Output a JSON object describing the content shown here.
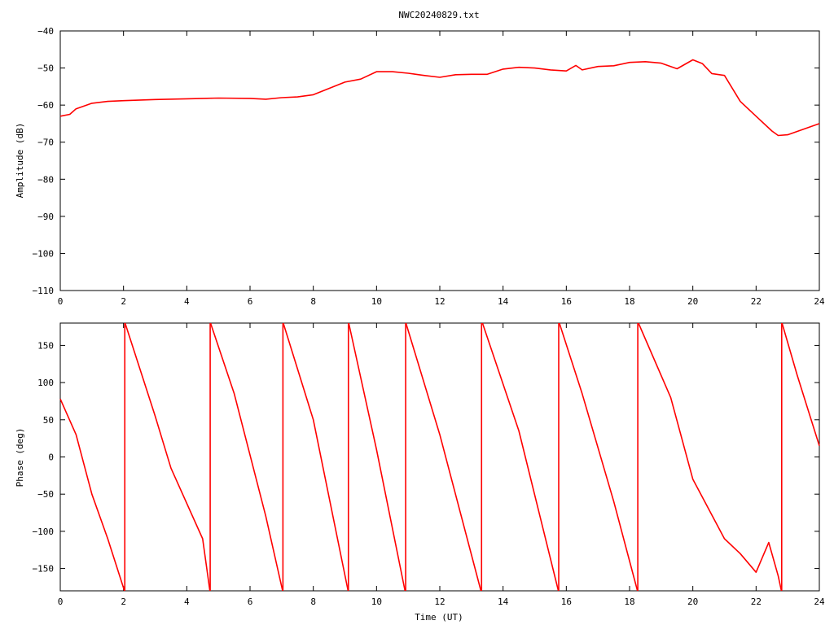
{
  "title": "NWC20240829.txt",
  "chart_data": [
    {
      "type": "line",
      "title": "NWC20240829.txt",
      "xlabel": "",
      "ylabel": "Amplitude (dB)",
      "xlim": [
        0,
        24
      ],
      "ylim": [
        -110,
        -40
      ],
      "xticks": [
        "0",
        "2",
        "4",
        "6",
        "8",
        "10",
        "12",
        "14",
        "16",
        "18",
        "20",
        "22",
        "24"
      ],
      "yticks": [
        "−40",
        "−50",
        "−60",
        "−70",
        "−80",
        "−90",
        "−100",
        "−110"
      ],
      "grid": false,
      "color": "#ff0000",
      "series": [
        {
          "x": [
            0,
            0.3,
            0.5,
            1,
            1.5,
            2,
            3,
            4,
            5,
            6,
            6.5,
            7,
            7.5,
            8,
            8.5,
            9,
            9.5,
            10,
            10.5,
            11,
            11.5,
            12,
            12.5,
            13,
            13.5,
            14,
            14.5,
            15,
            15.5,
            16,
            16.3,
            16.5,
            17,
            17.5,
            18,
            18.5,
            19,
            19.5,
            20,
            20.3,
            20.6,
            21,
            21.5,
            22,
            22.5,
            22.7,
            23,
            23.5,
            24
          ],
          "y": [
            -63,
            -62.5,
            -61,
            -59.5,
            -59,
            -58.8,
            -58.5,
            -58.3,
            -58.1,
            -58.2,
            -58.4,
            -58,
            -57.8,
            -57.2,
            -55.5,
            -53.8,
            -53,
            -51,
            -51,
            -51.4,
            -52,
            -52.5,
            -51.8,
            -51.7,
            -51.7,
            -50.3,
            -49.8,
            -50,
            -50.5,
            -50.8,
            -49.3,
            -50.5,
            -49.6,
            -49.4,
            -48.5,
            -48.3,
            -48.7,
            -50.2,
            -47.8,
            -48.8,
            -51.5,
            -52,
            -59,
            -63,
            -67,
            -68.2,
            -68,
            -66.5,
            -65
          ]
        }
      ]
    },
    {
      "type": "line",
      "title": "",
      "xlabel": "Time (UT)",
      "ylabel": "Phase (deg)",
      "xlim": [
        0,
        24
      ],
      "ylim": [
        -180,
        180
      ],
      "xticks": [
        "0",
        "2",
        "4",
        "6",
        "8",
        "10",
        "12",
        "14",
        "16",
        "18",
        "20",
        "22",
        "24"
      ],
      "yticks": [
        "150",
        "100",
        "50",
        "0",
        "−50",
        "−100",
        "−150"
      ],
      "grid": false,
      "color": "#ff0000",
      "series": [
        {
          "x": [
            0,
            0.5,
            1,
            1.5,
            2.03
          ],
          "y": [
            78,
            30,
            -50,
            -110,
            -180
          ]
        },
        {
          "x": [
            2.05,
            3,
            3.5,
            4.5,
            4.73
          ],
          "y": [
            180,
            55,
            -15,
            -110,
            -180
          ]
        },
        {
          "x": [
            4.75,
            5.5,
            6.5,
            7.03
          ],
          "y": [
            180,
            85,
            -80,
            -180
          ]
        },
        {
          "x": [
            7.05,
            8,
            9.1
          ],
          "y": [
            180,
            50,
            -180
          ]
        },
        {
          "x": [
            9.12,
            10,
            10.9
          ],
          "y": [
            180,
            10,
            -180
          ]
        },
        {
          "x": [
            10.93,
            12,
            13.3
          ],
          "y": [
            180,
            30,
            -180
          ]
        },
        {
          "x": [
            13.35,
            14.5,
            15.75
          ],
          "y": [
            180,
            35,
            -180
          ]
        },
        {
          "x": [
            15.78,
            16.5,
            17.5,
            18.25
          ],
          "y": [
            180,
            85,
            -60,
            -180
          ]
        },
        {
          "x": [
            18.28,
            19.3,
            20,
            21,
            21.5,
            22,
            22.4,
            22.7,
            22.8
          ],
          "y": [
            180,
            80,
            -30,
            -110,
            -130,
            -155,
            -115,
            -160,
            -180
          ]
        },
        {
          "x": [
            22.82,
            23.3,
            24
          ],
          "y": [
            180,
            110,
            15
          ]
        }
      ],
      "wrap_x": [
        2.04,
        4.74,
        7.04,
        9.11,
        10.92,
        13.32,
        15.76,
        18.26,
        22.81
      ]
    }
  ]
}
